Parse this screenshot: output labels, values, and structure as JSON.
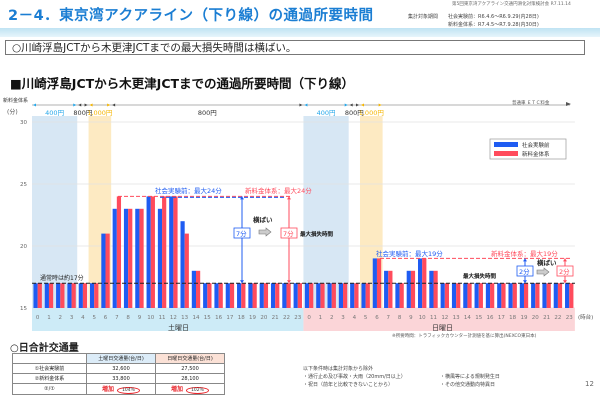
{
  "header": {
    "title": "2－4．東京湾アクアライン（下り線）の通過所要時間",
    "meeting": "第5回東京湾アクアライン交通円滑化対策検討会 R7.11.14",
    "period_label": "集計対象期間",
    "period_before": "社会実験前：R6.4.6～R6.9.29(内28日)",
    "period_after": "新料金体系：R7.4.5～R7.9.28(内30日)"
  },
  "summary": "○川崎浮島JCTから木更津JCTまでの最大損失時間は横ばい。",
  "section_title": "■川崎浮島JCTから木更津JCTまでの通過所要時間（下り線）",
  "chart_data": {
    "type": "bar",
    "title": "川崎浮島JCTから木更津JCTまでの通過所要時間（下り線）",
    "ylabel_top": "新料金体系",
    "ylabel": "(分)",
    "xlabel": "(時台)",
    "ylim": [
      15,
      30
    ],
    "yticks": [
      15,
      20,
      25,
      30
    ],
    "grid": true,
    "legend_position": "top-right",
    "colors": {
      "before": "#1f5cf2",
      "after": "#ff4b5c"
    },
    "categories": [
      "0",
      "1",
      "2",
      "3",
      "4",
      "5",
      "6",
      "7",
      "8",
      "9",
      "10",
      "11",
      "12",
      "13",
      "14",
      "15",
      "16",
      "17",
      "18",
      "19",
      "20",
      "21",
      "22",
      "23"
    ],
    "groups": [
      {
        "day": "土曜日",
        "series": [
          {
            "name": "社会実験前",
            "values": [
              17,
              17,
              17,
              17,
              17,
              17,
              21,
              23,
              23,
              23,
              24,
              23,
              24,
              22,
              18,
              17,
              17,
              17,
              17,
              17,
              17,
              17,
              17,
              17
            ]
          },
          {
            "name": "新料金体系",
            "values": [
              17,
              17,
              17,
              17,
              17,
              17,
              21,
              24,
              23,
              23,
              24,
              24,
              24,
              21,
              18,
              17,
              17,
              17,
              17,
              17,
              17,
              17,
              17,
              17
            ]
          }
        ]
      },
      {
        "day": "日曜日",
        "series": [
          {
            "name": "社会実験前",
            "values": [
              17,
              17,
              17,
              17,
              17,
              17,
              19,
              18,
              17,
              18,
              19,
              18,
              17,
              17,
              17,
              17,
              17,
              17,
              17,
              17,
              17,
              17,
              17,
              17
            ]
          },
          {
            "name": "新料金体系",
            "values": [
              17,
              17,
              17,
              17,
              17,
              17,
              19,
              18,
              17,
              18,
              19,
              18,
              17,
              17,
              17,
              17,
              17,
              17,
              17,
              17,
              17,
              17,
              17,
              17
            ]
          }
        ]
      }
    ],
    "legend": [
      "社会実験前",
      "新料金体系"
    ],
    "toll_label": "普通車 ＥＴＣ料金",
    "tolls": [
      {
        "day": 0,
        "from_hour": 0,
        "to_hour": 4,
        "label": "400円",
        "band": "blue"
      },
      {
        "day": 0,
        "from_hour": 4,
        "to_hour": 5,
        "label": "800円",
        "band": "none"
      },
      {
        "day": 0,
        "from_hour": 5,
        "to_hour": 7,
        "label": "1,000円",
        "band": "yellow"
      },
      {
        "day": 0,
        "from_hour": 7,
        "to_hour": 24,
        "label": "800円",
        "band": "none"
      },
      {
        "day": 1,
        "from_hour": 0,
        "to_hour": 4,
        "label": "400円",
        "band": "blue"
      },
      {
        "day": 1,
        "from_hour": 4,
        "to_hour": 5,
        "label": "800円",
        "band": "none"
      },
      {
        "day": 1,
        "from_hour": 5,
        "to_hour": 7,
        "label": "1,000円",
        "band": "yellow"
      }
    ],
    "normal_line": {
      "value": 17,
      "label": "通常時は約17分"
    },
    "annotations": {
      "sat_before_max": "社会実験前：最大24分",
      "sat_after_max": "新料金体系：最大24分",
      "sat_before_loss": "7分",
      "sat_after_loss": "7分",
      "sat_flat": "横ばい",
      "sat_loss_label": "最大損失時間",
      "sun_before_max": "社会実験前：最大19分",
      "sun_after_max": "新料金体系：最大19分",
      "sun_before_loss": "2分",
      "sun_after_loss": "2分",
      "sun_flat": "横ばい",
      "sun_loss_label": "最大損失時間",
      "sat_max_value": 24,
      "sun_max_value": 19
    }
  },
  "source_note": "※所要時間：トラフィックカウンター計測値を基に算出(NEXCO東日本)",
  "traffic": {
    "title": "○日合計交通量",
    "headers": [
      "",
      "土曜日交通量(台/日)",
      "日曜日交通量(台/日)"
    ],
    "rows": [
      {
        "label": "①社会実験前",
        "sat": "32,600",
        "sun": "27,500"
      },
      {
        "label": "②新料金体系",
        "sat": "33,800",
        "sun": "28,100"
      }
    ],
    "ratio": {
      "label": "②/①",
      "inc_label": "増加",
      "sat": "104%",
      "sun": "102%"
    }
  },
  "notes": {
    "heading": "以下条件時は集計対象から除外",
    "items": [
      "・通行止め及び事故・大雨（20mm/日以上）",
      "・祝日（前年と比較できないことから）",
      "・横風等による規制発生日",
      "・その他交通動向特異日"
    ]
  },
  "page_number": "12"
}
